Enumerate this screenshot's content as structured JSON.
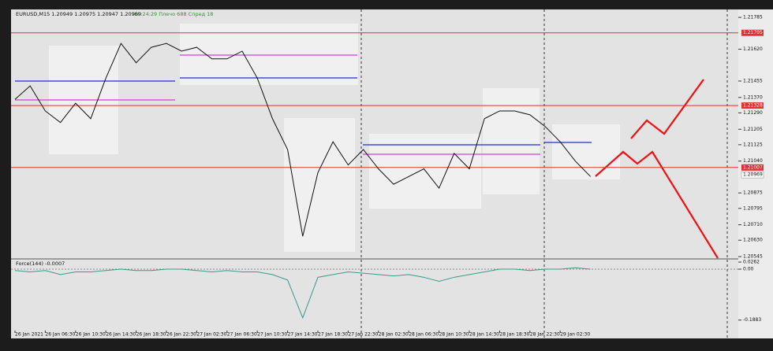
{
  "chart_data": {
    "type": "line",
    "symbol_header": "EURUSD,M15  1.20949 1.20975 1.20947 1.20969",
    "status": "00:24:29 Плечо 688 Спред 18",
    "categories": [
      "26 Jan 2021",
      null,
      "26 Jan 06:30",
      null,
      "26 Jan 10:30",
      null,
      "26 Jan 14:30",
      null,
      "26 Jan 18:30",
      null,
      "26 Jan 22:30",
      null,
      "27 Jan 02:30",
      null,
      "27 Jan 06:30",
      null,
      "27 Jan 10:30",
      null,
      "27 Jan 14:30",
      null,
      "27 Jan 18:30",
      null,
      "27 Jan 22:30",
      null,
      "28 Jan 02:30",
      null,
      "28 Jan 06:30",
      null,
      "28 Jan 10:30",
      null,
      "28 Jan 14:30",
      null,
      "28 Jan 18:30",
      null,
      "28 Jan 22:30",
      null,
      "29 Jan 02:30",
      null,
      null
    ],
    "series": [
      {
        "color": "#111111",
        "values": [
          1.2136,
          1.2143,
          1.213,
          1.2124,
          1.2134,
          1.2126,
          1.2147,
          1.2165,
          1.2155,
          1.2163,
          1.2165,
          1.2161,
          1.2163,
          1.2157,
          1.2157,
          1.2161,
          1.2147,
          1.2126,
          1.211,
          1.2065,
          1.2098,
          1.2114,
          1.2102,
          1.211,
          1.21,
          1.2092,
          1.2096,
          1.21,
          1.209,
          1.2108,
          1.21,
          1.2126,
          1.213,
          1.213,
          1.2128,
          1.2122,
          1.2114,
          1.2104,
          1.2096
        ]
      }
    ],
    "ylim": [
      1.20537,
      1.21818
    ],
    "yticks": [
      1.21785,
      {
        "value": 1.2162,
        "label": "1.21620"
      },
      1.21455,
      {
        "value": 1.2137,
        "label": "1.21370"
      },
      {
        "value": 1.2129,
        "label": "1.21290"
      },
      1.21205,
      1.21125,
      {
        "value": 1.2104,
        "label": "1.21040"
      },
      1.20875,
      1.20795,
      {
        "value": 1.2071,
        "label": "1.20710"
      },
      {
        "value": 1.2063,
        "label": "1.20630"
      },
      1.20545
    ],
    "levels": [
      1.21705,
      1.21328,
      1.21007
    ],
    "level_color": "#e53030",
    "last_price": 1.20969,
    "indicator": {
      "title": "Force(144) -0.0007",
      "color": "#3a9a8a",
      "values": [
        -0.005,
        -0.01,
        -0.005,
        -0.02,
        -0.01,
        -0.01,
        -0.005,
        0.0,
        -0.005,
        -0.005,
        0.0,
        0.0,
        -0.005,
        -0.01,
        -0.005,
        -0.01,
        -0.01,
        -0.02,
        -0.04,
        -0.18,
        -0.03,
        -0.02,
        -0.01,
        -0.015,
        -0.02,
        -0.025,
        -0.02,
        -0.03,
        -0.045,
        -0.03,
        -0.02,
        -0.01,
        0.0,
        0.0,
        -0.005,
        0.0,
        0.0,
        0.005,
        0.0
      ],
      "ylim": [
        -0.227,
        0.035
      ],
      "yticks": [
        0.0262,
        {
          "value": 0,
          "label": "0.00"
        },
        -0.1883
      ]
    }
  }
}
